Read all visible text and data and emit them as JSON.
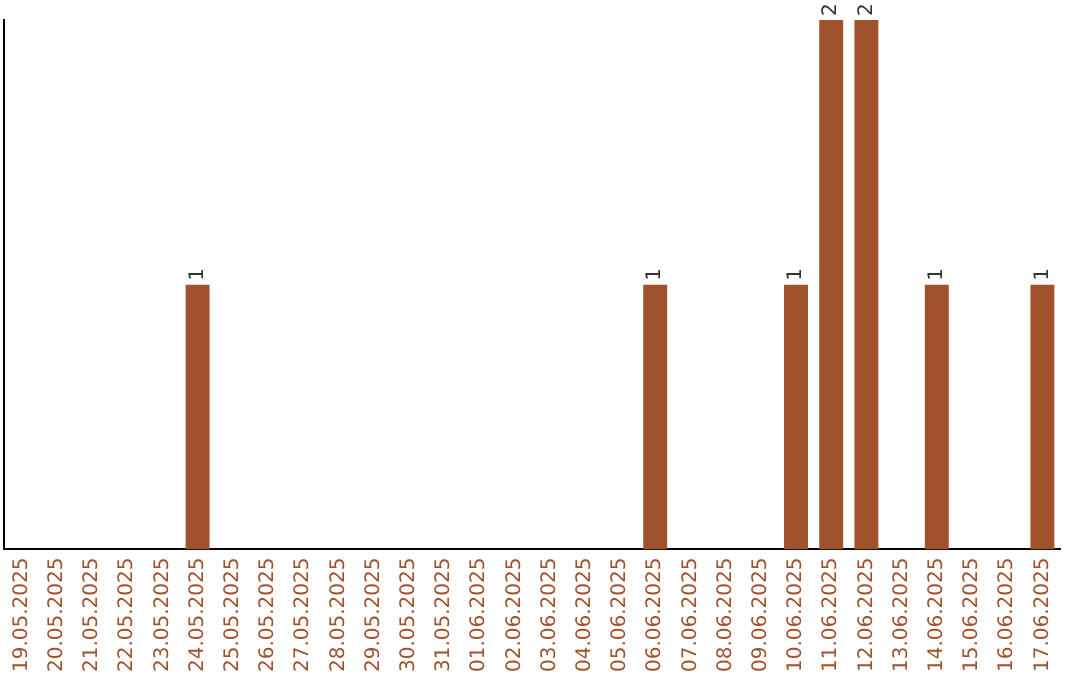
{
  "chart_data": {
    "type": "bar",
    "categories": [
      "19.05.2025",
      "20.05.2025",
      "21.05.2025",
      "22.05.2025",
      "23.05.2025",
      "24.05.2025",
      "25.05.2025",
      "26.05.2025",
      "27.05.2025",
      "28.05.2025",
      "29.05.2025",
      "30.05.2025",
      "31.05.2025",
      "01.06.2025",
      "02.06.2025",
      "03.06.2025",
      "04.06.2025",
      "05.06.2025",
      "06.06.2025",
      "07.06.2025",
      "08.06.2025",
      "09.06.2025",
      "10.06.2025",
      "11.06.2025",
      "12.06.2025",
      "13.06.2025",
      "14.06.2025",
      "15.06.2025",
      "16.06.2025",
      "17.06.2025"
    ],
    "values": [
      0,
      0,
      0,
      0,
      0,
      1,
      0,
      0,
      0,
      0,
      0,
      0,
      0,
      0,
      0,
      0,
      0,
      0,
      1,
      0,
      0,
      0,
      1,
      2,
      2,
      0,
      1,
      0,
      0,
      1
    ],
    "value_labels": [
      null,
      null,
      null,
      null,
      null,
      "1",
      null,
      null,
      null,
      null,
      null,
      null,
      null,
      null,
      null,
      null,
      null,
      null,
      "1",
      null,
      null,
      null,
      "1",
      "2",
      "2",
      null,
      "1",
      null,
      null,
      "1"
    ],
    "color": "#a0522d",
    "ylim": [
      0,
      2
    ],
    "tick_labels": "x",
    "grid": false,
    "legend": false
  }
}
